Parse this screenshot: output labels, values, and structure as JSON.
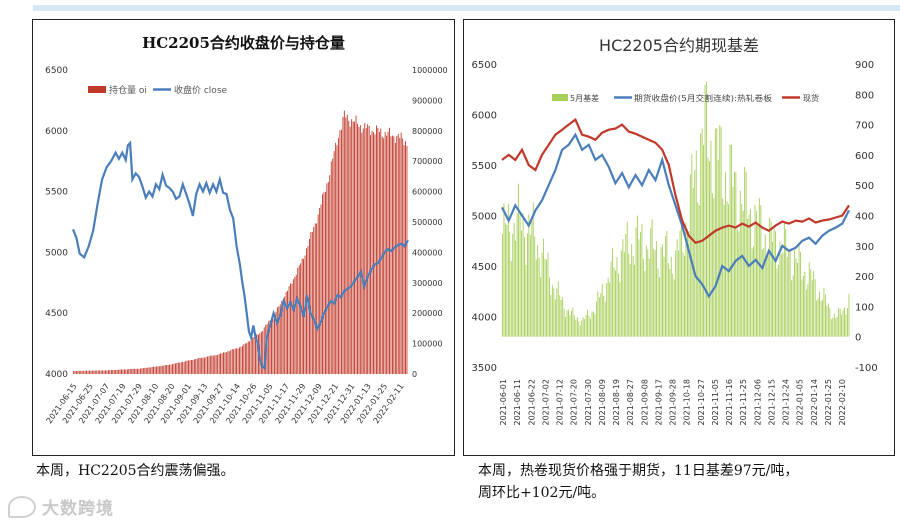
{
  "chart_data": [
    {
      "type": "bar+line",
      "title": "HC2205合约收盘价与持仓量",
      "legend": [
        "持仓量 oi",
        "收盘价 close"
      ],
      "legend_placement": "top-left",
      "y_left_range": [
        4000,
        6500
      ],
      "y_left_ticks": [
        "6500",
        "6000",
        "5500",
        "5000",
        "4500",
        "4000"
      ],
      "y_right_range": [
        0,
        1000000
      ],
      "y_right_ticks": [
        "1000000",
        "900000",
        "800000",
        "700000",
        "600000",
        "500000",
        "400000",
        "300000",
        "200000",
        "100000",
        "0"
      ],
      "x_ticks": [
        "2021-06-15",
        "2021-06-25",
        "2021-07-07",
        "2021-07-19",
        "2021-07-29",
        "2021-08-10",
        "2021-08-20",
        "2021-09-01",
        "2021-09-13",
        "2021-09-27",
        "2021-10-14",
        "2021-10-26",
        "2021-11-05",
        "2021-11-17",
        "2021-11-29",
        "2021-12-09",
        "2021-12-21",
        "2021-12-31",
        "2022-01-13",
        "2022-01-25",
        "2022-02-11"
      ],
      "oi_points": [
        [
          0,
          10000
        ],
        [
          30,
          12000
        ],
        [
          60,
          18000
        ],
        [
          85,
          30000
        ],
        [
          110,
          50000
        ],
        [
          130,
          65000
        ],
        [
          150,
          90000
        ],
        [
          168,
          140000
        ],
        [
          180,
          200000
        ],
        [
          192,
          280000
        ],
        [
          205,
          380000
        ],
        [
          218,
          520000
        ],
        [
          228,
          650000
        ],
        [
          236,
          780000
        ],
        [
          242,
          850000
        ],
        [
          250,
          830000
        ],
        [
          260,
          810000
        ],
        [
          270,
          800000
        ],
        [
          280,
          790000
        ],
        [
          290,
          780000
        ],
        [
          299,
          760000
        ]
      ],
      "close_points": [
        [
          0,
          5190
        ],
        [
          3,
          5120
        ],
        [
          6,
          4990
        ],
        [
          10,
          4960
        ],
        [
          14,
          5050
        ],
        [
          18,
          5180
        ],
        [
          22,
          5400
        ],
        [
          26,
          5600
        ],
        [
          30,
          5700
        ],
        [
          34,
          5750
        ],
        [
          38,
          5820
        ],
        [
          41,
          5770
        ],
        [
          44,
          5820
        ],
        [
          47,
          5760
        ],
        [
          49,
          5880
        ],
        [
          51,
          5900
        ],
        [
          53,
          5600
        ],
        [
          56,
          5650
        ],
        [
          59,
          5620
        ],
        [
          62,
          5540
        ],
        [
          65,
          5450
        ],
        [
          68,
          5500
        ],
        [
          71,
          5460
        ],
        [
          74,
          5560
        ],
        [
          77,
          5520
        ],
        [
          80,
          5640
        ],
        [
          83,
          5550
        ],
        [
          86,
          5530
        ],
        [
          89,
          5500
        ],
        [
          92,
          5440
        ],
        [
          95,
          5460
        ],
        [
          98,
          5560
        ],
        [
          101,
          5480
        ],
        [
          104,
          5400
        ],
        [
          107,
          5300
        ],
        [
          110,
          5480
        ],
        [
          113,
          5560
        ],
        [
          116,
          5500
        ],
        [
          119,
          5570
        ],
        [
          122,
          5490
        ],
        [
          125,
          5560
        ],
        [
          128,
          5500
        ],
        [
          131,
          5600
        ],
        [
          134,
          5490
        ],
        [
          137,
          5480
        ],
        [
          140,
          5350
        ],
        [
          143,
          5280
        ],
        [
          146,
          5050
        ],
        [
          149,
          4900
        ],
        [
          151,
          4760
        ],
        [
          153,
          4650
        ],
        [
          155,
          4500
        ],
        [
          157,
          4350
        ],
        [
          159,
          4300
        ],
        [
          161,
          4400
        ],
        [
          163,
          4300
        ],
        [
          165,
          4250
        ],
        [
          167,
          4110
        ],
        [
          169,
          4060
        ],
        [
          171,
          4050
        ],
        [
          173,
          4300
        ],
        [
          176,
          4400
        ],
        [
          179,
          4500
        ],
        [
          182,
          4420
        ],
        [
          185,
          4480
        ],
        [
          188,
          4600
        ],
        [
          191,
          4540
        ],
        [
          194,
          4590
        ],
        [
          197,
          4530
        ],
        [
          200,
          4620
        ],
        [
          203,
          4560
        ],
        [
          206,
          4470
        ],
        [
          209,
          4650
        ],
        [
          212,
          4500
        ],
        [
          215,
          4450
        ],
        [
          218,
          4370
        ],
        [
          221,
          4420
        ],
        [
          224,
          4500
        ],
        [
          227,
          4550
        ],
        [
          230,
          4600
        ],
        [
          233,
          4580
        ],
        [
          236,
          4650
        ],
        [
          239,
          4630
        ],
        [
          242,
          4680
        ],
        [
          245,
          4700
        ],
        [
          248,
          4720
        ],
        [
          251,
          4760
        ],
        [
          254,
          4800
        ],
        [
          257,
          4840
        ],
        [
          260,
          4720
        ],
        [
          263,
          4800
        ],
        [
          266,
          4850
        ],
        [
          269,
          4900
        ],
        [
          272,
          4910
        ],
        [
          275,
          4950
        ],
        [
          278,
          5000
        ],
        [
          281,
          5030
        ],
        [
          284,
          5010
        ],
        [
          287,
          5040
        ],
        [
          290,
          5060
        ],
        [
          293,
          5070
        ],
        [
          296,
          5050
        ],
        [
          299,
          5100
        ]
      ]
    },
    {
      "type": "bar+line",
      "title": "HC2205合约期现基差",
      "legend": [
        "5月基差",
        "期货收盘价(5月交割连续):热轧卷板",
        "现货"
      ],
      "legend_placement": "top",
      "y_left_range": [
        3500,
        6500
      ],
      "y_left_ticks": [
        "6500",
        "6000",
        "5500",
        "5000",
        "4500",
        "4000",
        "3500"
      ],
      "y_right_range": [
        -100,
        900
      ],
      "y_right_ticks": [
        "900",
        "800",
        "700",
        "600",
        "500",
        "400",
        "300",
        "200",
        "100",
        "0",
        "-100"
      ],
      "x_ticks": [
        "2021-06-01",
        "2021-06-11",
        "2021-06-22",
        "2021-07-02",
        "2021-07-12",
        "2021-07-20",
        "2021-07-30",
        "2021-08-09",
        "2021-08-19",
        "2021-08-27",
        "2021-09-08",
        "2021-09-17",
        "2021-09-28",
        "2021-10-18",
        "2021-10-27",
        "2021-11-05",
        "2021-11-16",
        "2021-11-25",
        "2021-12-06",
        "2021-12-15",
        "2021-12-24",
        "2022-01-05",
        "2022-01-14",
        "2022-01-25",
        "2022-02-10"
      ],
      "basis_points": [
        [
          0,
          340
        ],
        [
          10,
          380
        ],
        [
          20,
          360
        ],
        [
          30,
          270
        ],
        [
          40,
          150
        ],
        [
          50,
          80
        ],
        [
          60,
          50
        ],
        [
          70,
          100
        ],
        [
          80,
          200
        ],
        [
          90,
          280
        ],
        [
          100,
          320
        ],
        [
          110,
          300
        ],
        [
          120,
          280
        ],
        [
          130,
          250
        ],
        [
          140,
          420
        ],
        [
          150,
          680
        ],
        [
          160,
          600
        ],
        [
          170,
          520
        ],
        [
          180,
          450
        ],
        [
          190,
          380
        ],
        [
          200,
          320
        ],
        [
          210,
          300
        ],
        [
          220,
          250
        ],
        [
          230,
          200
        ],
        [
          240,
          130
        ],
        [
          250,
          60
        ],
        [
          260,
          120
        ]
      ],
      "futures_points": [
        [
          0,
          5080
        ],
        [
          5,
          4950
        ],
        [
          10,
          5100
        ],
        [
          15,
          5000
        ],
        [
          20,
          4900
        ],
        [
          25,
          5050
        ],
        [
          30,
          5150
        ],
        [
          35,
          5300
        ],
        [
          40,
          5450
        ],
        [
          45,
          5650
        ],
        [
          50,
          5700
        ],
        [
          55,
          5800
        ],
        [
          60,
          5650
        ],
        [
          65,
          5700
        ],
        [
          70,
          5550
        ],
        [
          75,
          5600
        ],
        [
          80,
          5480
        ],
        [
          85,
          5320
        ],
        [
          90,
          5420
        ],
        [
          95,
          5280
        ],
        [
          100,
          5400
        ],
        [
          105,
          5300
        ],
        [
          110,
          5450
        ],
        [
          115,
          5350
        ],
        [
          120,
          5550
        ],
        [
          125,
          5300
        ],
        [
          130,
          5100
        ],
        [
          135,
          4900
        ],
        [
          140,
          4650
        ],
        [
          145,
          4400
        ],
        [
          150,
          4320
        ],
        [
          155,
          4200
        ],
        [
          160,
          4300
        ],
        [
          165,
          4500
        ],
        [
          170,
          4450
        ],
        [
          175,
          4550
        ],
        [
          180,
          4600
        ],
        [
          185,
          4500
        ],
        [
          190,
          4560
        ],
        [
          195,
          4480
        ],
        [
          200,
          4650
        ],
        [
          205,
          4550
        ],
        [
          210,
          4700
        ],
        [
          215,
          4650
        ],
        [
          220,
          4680
        ],
        [
          225,
          4750
        ],
        [
          230,
          4780
        ],
        [
          235,
          4720
        ],
        [
          240,
          4800
        ],
        [
          245,
          4850
        ],
        [
          250,
          4880
        ],
        [
          255,
          4920
        ],
        [
          260,
          5050
        ]
      ],
      "spot_points": [
        [
          0,
          5550
        ],
        [
          5,
          5600
        ],
        [
          10,
          5550
        ],
        [
          15,
          5650
        ],
        [
          20,
          5500
        ],
        [
          25,
          5450
        ],
        [
          30,
          5600
        ],
        [
          35,
          5700
        ],
        [
          40,
          5800
        ],
        [
          45,
          5850
        ],
        [
          50,
          5900
        ],
        [
          55,
          5950
        ],
        [
          60,
          5800
        ],
        [
          65,
          5780
        ],
        [
          70,
          5750
        ],
        [
          75,
          5820
        ],
        [
          80,
          5850
        ],
        [
          85,
          5860
        ],
        [
          90,
          5900
        ],
        [
          95,
          5830
        ],
        [
          100,
          5810
        ],
        [
          105,
          5780
        ],
        [
          110,
          5750
        ],
        [
          115,
          5720
        ],
        [
          120,
          5650
        ],
        [
          125,
          5500
        ],
        [
          130,
          5200
        ],
        [
          135,
          4950
        ],
        [
          140,
          4800
        ],
        [
          145,
          4730
        ],
        [
          150,
          4750
        ],
        [
          155,
          4800
        ],
        [
          160,
          4850
        ],
        [
          165,
          4880
        ],
        [
          170,
          4900
        ],
        [
          175,
          4880
        ],
        [
          180,
          4920
        ],
        [
          185,
          4890
        ],
        [
          190,
          4930
        ],
        [
          195,
          4880
        ],
        [
          200,
          4850
        ],
        [
          205,
          4900
        ],
        [
          210,
          4940
        ],
        [
          215,
          4920
        ],
        [
          220,
          4950
        ],
        [
          225,
          4940
        ],
        [
          230,
          4970
        ],
        [
          235,
          4930
        ],
        [
          240,
          4950
        ],
        [
          245,
          4960
        ],
        [
          250,
          4980
        ],
        [
          255,
          5000
        ],
        [
          260,
          5100
        ]
      ]
    }
  ],
  "captions": {
    "left": "本周，HC2205合约震荡偏强。",
    "right_line1": "本周，热卷现货价格强于期货，11日基差97元/吨，",
    "right_line2": "周环比+102元/吨。"
  },
  "watermark": "大数跨境",
  "colors": {
    "bar_red": "#c0392b",
    "line_blue": "#4a7ebb",
    "bar_green": "#a8cf5a",
    "spot_red": "#c0392b"
  }
}
